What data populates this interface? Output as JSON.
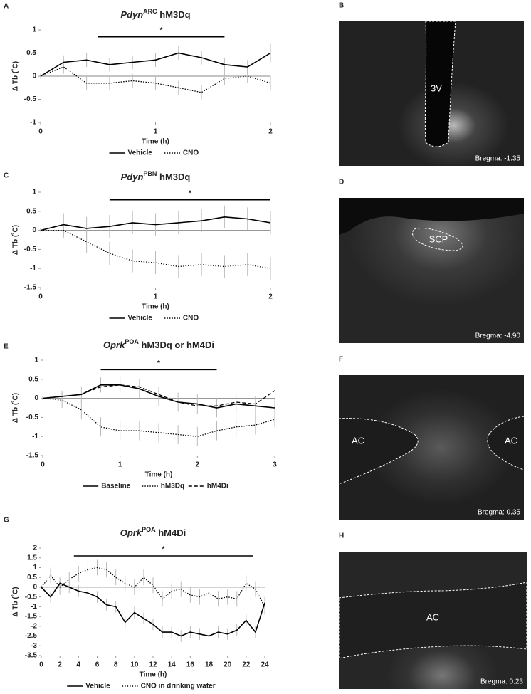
{
  "chart_data": [
    {
      "panel": "A",
      "type": "line",
      "title": {
        "gene": "Pdyn",
        "sup": "ARC",
        "rest": " hM3Dq"
      },
      "xlabel": "Time (h)",
      "ylabel": "Δ Tb (˚C)",
      "x": [
        0,
        0.2,
        0.4,
        0.6,
        0.8,
        1,
        1.2,
        1.4,
        1.6,
        1.8,
        2
      ],
      "xlim": [
        0,
        2
      ],
      "xticks": [
        0,
        1,
        2
      ],
      "ylim": [
        -1,
        1
      ],
      "yticks": [
        -1,
        -0.5,
        0,
        0.5,
        1
      ],
      "error_color": "#bbbbbb",
      "series": [
        {
          "name": "Vehicle",
          "color": "#000000",
          "dash": "solid",
          "values": [
            0,
            0.3,
            0.35,
            0.25,
            0.3,
            0.35,
            0.5,
            0.4,
            0.25,
            0.2,
            0.5
          ],
          "errors": [
            0.05,
            0.15,
            0.15,
            0.15,
            0.15,
            0.15,
            0.15,
            0.15,
            0.15,
            0.15,
            0.2
          ]
        },
        {
          "name": "CNO",
          "color": "#000000",
          "dash": "dotted",
          "values": [
            0,
            0.2,
            -0.15,
            -0.15,
            -0.1,
            -0.15,
            -0.25,
            -0.35,
            -0.05,
            0,
            -0.15
          ],
          "errors": [
            0.05,
            0.15,
            0.15,
            0.15,
            0.15,
            0.15,
            0.15,
            0.15,
            0.15,
            0.15,
            0.15
          ]
        }
      ],
      "significance": {
        "x": [
          0.5,
          1.6
        ],
        "y": 0.85,
        "label": "*"
      }
    },
    {
      "panel": "C",
      "type": "line",
      "title": {
        "gene": "Pdyn",
        "sup": "PBN",
        "rest": " hM3Dq"
      },
      "xlabel": "Time (h)",
      "ylabel": "Δ Tb (˚C)",
      "x": [
        0,
        0.2,
        0.4,
        0.6,
        0.8,
        1,
        1.2,
        1.4,
        1.6,
        1.8,
        2
      ],
      "xlim": [
        0,
        2
      ],
      "xticks": [
        0,
        1,
        2
      ],
      "ylim": [
        -1.5,
        1
      ],
      "yticks": [
        -1.5,
        -1,
        -0.5,
        0,
        0.5,
        1
      ],
      "error_color": "#bbbbbb",
      "series": [
        {
          "name": "Vehicle",
          "color": "#000000",
          "dash": "solid",
          "values": [
            0,
            0.15,
            0.05,
            0.1,
            0.2,
            0.15,
            0.2,
            0.25,
            0.35,
            0.3,
            0.2
          ],
          "errors": [
            0.05,
            0.3,
            0.3,
            0.3,
            0.3,
            0.3,
            0.3,
            0.3,
            0.3,
            0.3,
            0.3
          ]
        },
        {
          "name": "CNO",
          "color": "#000000",
          "dash": "dotted",
          "values": [
            0,
            0,
            -0.3,
            -0.6,
            -0.8,
            -0.85,
            -0.95,
            -0.9,
            -0.95,
            -0.9,
            -1
          ],
          "errors": [
            0.05,
            0.2,
            0.3,
            0.3,
            0.3,
            0.3,
            0.3,
            0.3,
            0.3,
            0.3,
            0.3
          ]
        }
      ],
      "significance": {
        "x": [
          0.6,
          2
        ],
        "y": 0.8,
        "label": "*"
      }
    },
    {
      "panel": "E",
      "type": "line",
      "title": {
        "gene": "Oprk",
        "sup": "POA",
        "rest": " hM3Dq or hM4Di"
      },
      "xlabel": "Time (h)",
      "ylabel": "Δ Tb (˚C)",
      "x": [
        0,
        0.25,
        0.5,
        0.75,
        1,
        1.25,
        1.5,
        1.75,
        2,
        2.25,
        2.5,
        2.75,
        3
      ],
      "xlim": [
        0,
        3
      ],
      "xticks": [
        0,
        1,
        2,
        3
      ],
      "ylim": [
        -1.5,
        1
      ],
      "yticks": [
        -1.5,
        -1,
        -0.5,
        0,
        0.5,
        1
      ],
      "error_color": "#bbbbbb",
      "series": [
        {
          "name": "Baseline",
          "color": "#000000",
          "dash": "solid",
          "values": [
            0,
            0.05,
            0.1,
            0.35,
            0.35,
            0.25,
            0.05,
            -0.1,
            -0.15,
            -0.25,
            -0.15,
            -0.2,
            -0.25
          ],
          "errors": [
            0.05,
            0.15,
            0.2,
            0.2,
            0.2,
            0.25,
            0.25,
            0.25,
            0.25,
            0.25,
            0.25,
            0.25,
            0.25
          ]
        },
        {
          "name": "hM3Dq",
          "color": "#000000",
          "dash": "dotted",
          "values": [
            0,
            -0.05,
            -0.3,
            -0.75,
            -0.85,
            -0.85,
            -0.9,
            -0.95,
            -1,
            -0.85,
            -0.75,
            -0.7,
            -0.55
          ],
          "errors": [
            0.05,
            0.2,
            0.25,
            0.25,
            0.25,
            0.25,
            0.25,
            0.25,
            0.25,
            0.25,
            0.25,
            0.25,
            0.2
          ]
        },
        {
          "name": "hM4Di",
          "color": "#000000",
          "dash": "dashed",
          "values": [
            0,
            0.05,
            0.1,
            0.3,
            0.35,
            0.3,
            0.1,
            -0.1,
            -0.2,
            -0.2,
            -0.1,
            -0.15,
            0.2
          ]
        }
      ],
      "significance": {
        "x": [
          0.75,
          2.25
        ],
        "y": 0.75,
        "label": "*"
      }
    },
    {
      "panel": "G",
      "type": "line",
      "title": {
        "gene": "Oprk",
        "sup": "POA",
        "rest": " hM4Di"
      },
      "xlabel": "Time (h)",
      "ylabel": "Δ Tb (˚C)",
      "x": [
        0,
        1,
        2,
        3,
        4,
        5,
        6,
        7,
        8,
        9,
        10,
        11,
        12,
        13,
        14,
        15,
        16,
        17,
        18,
        19,
        20,
        21,
        22,
        23,
        24
      ],
      "xlim": [
        0,
        24
      ],
      "xticks": [
        0,
        2,
        4,
        6,
        8,
        10,
        12,
        14,
        16,
        18,
        20,
        22,
        24
      ],
      "ylim": [
        -3.5,
        2
      ],
      "yticks": [
        -3.5,
        -3,
        -2.5,
        -2,
        -1.5,
        -1,
        -0.5,
        0,
        0.5,
        1,
        1.5,
        2
      ],
      "error_color": "#bbbbbb",
      "series": [
        {
          "name": "Vehicle",
          "color": "#000000",
          "dash": "solid",
          "values": [
            0,
            -0.5,
            0.2,
            0,
            -0.2,
            -0.3,
            -0.5,
            -0.9,
            -1,
            -1.8,
            -1.3,
            -1.6,
            -1.9,
            -2.3,
            -2.3,
            -2.5,
            -2.3,
            -2.4,
            -2.5,
            -2.3,
            -2.4,
            -2.2,
            -1.7,
            -2.3,
            -0.8
          ],
          "errors": [
            0.1,
            0.3,
            0.3,
            0.3,
            0.3,
            0.3,
            0.3,
            0.3,
            0.3,
            0.3,
            0.3,
            0.3,
            0.3,
            0.3,
            0.3,
            0.3,
            0.3,
            0.3,
            0.3,
            0.3,
            0.3,
            0.3,
            0.3,
            0.3,
            0.3
          ]
        },
        {
          "name": "CNO in drinking water",
          "color": "#000000",
          "dash": "dotted",
          "values": [
            0,
            0.6,
            0,
            0.4,
            0.7,
            0.9,
            1,
            0.9,
            0.5,
            0.2,
            0,
            0.5,
            0.1,
            -0.6,
            -0.2,
            -0.1,
            -0.4,
            -0.5,
            -0.3,
            -0.6,
            -0.5,
            -0.6,
            0.2,
            -0.1,
            -1
          ],
          "errors": [
            0.1,
            0.4,
            0.4,
            0.4,
            0.4,
            0.4,
            0.4,
            0.4,
            0.4,
            0.4,
            0.4,
            0.4,
            0.4,
            0.4,
            0.4,
            0.4,
            0.4,
            0.4,
            0.4,
            0.4,
            0.4,
            0.4,
            0.4,
            0.4,
            0.4
          ]
        }
      ],
      "significance": {
        "x": [
          3.5,
          22.7
        ],
        "y": 1.6,
        "label": "*"
      }
    }
  ],
  "images": [
    {
      "panel": "B",
      "labels": [
        "3V"
      ],
      "bregma": "Bregma: -1.35"
    },
    {
      "panel": "D",
      "labels": [
        "SCP"
      ],
      "bregma": "Bregma: -4.90"
    },
    {
      "panel": "F",
      "labels": [
        "AC",
        "AC"
      ],
      "bregma": "Bregma: 0.35"
    },
    {
      "panel": "H",
      "labels": [
        "AC"
      ],
      "bregma": "Bregma: 0.23"
    }
  ]
}
